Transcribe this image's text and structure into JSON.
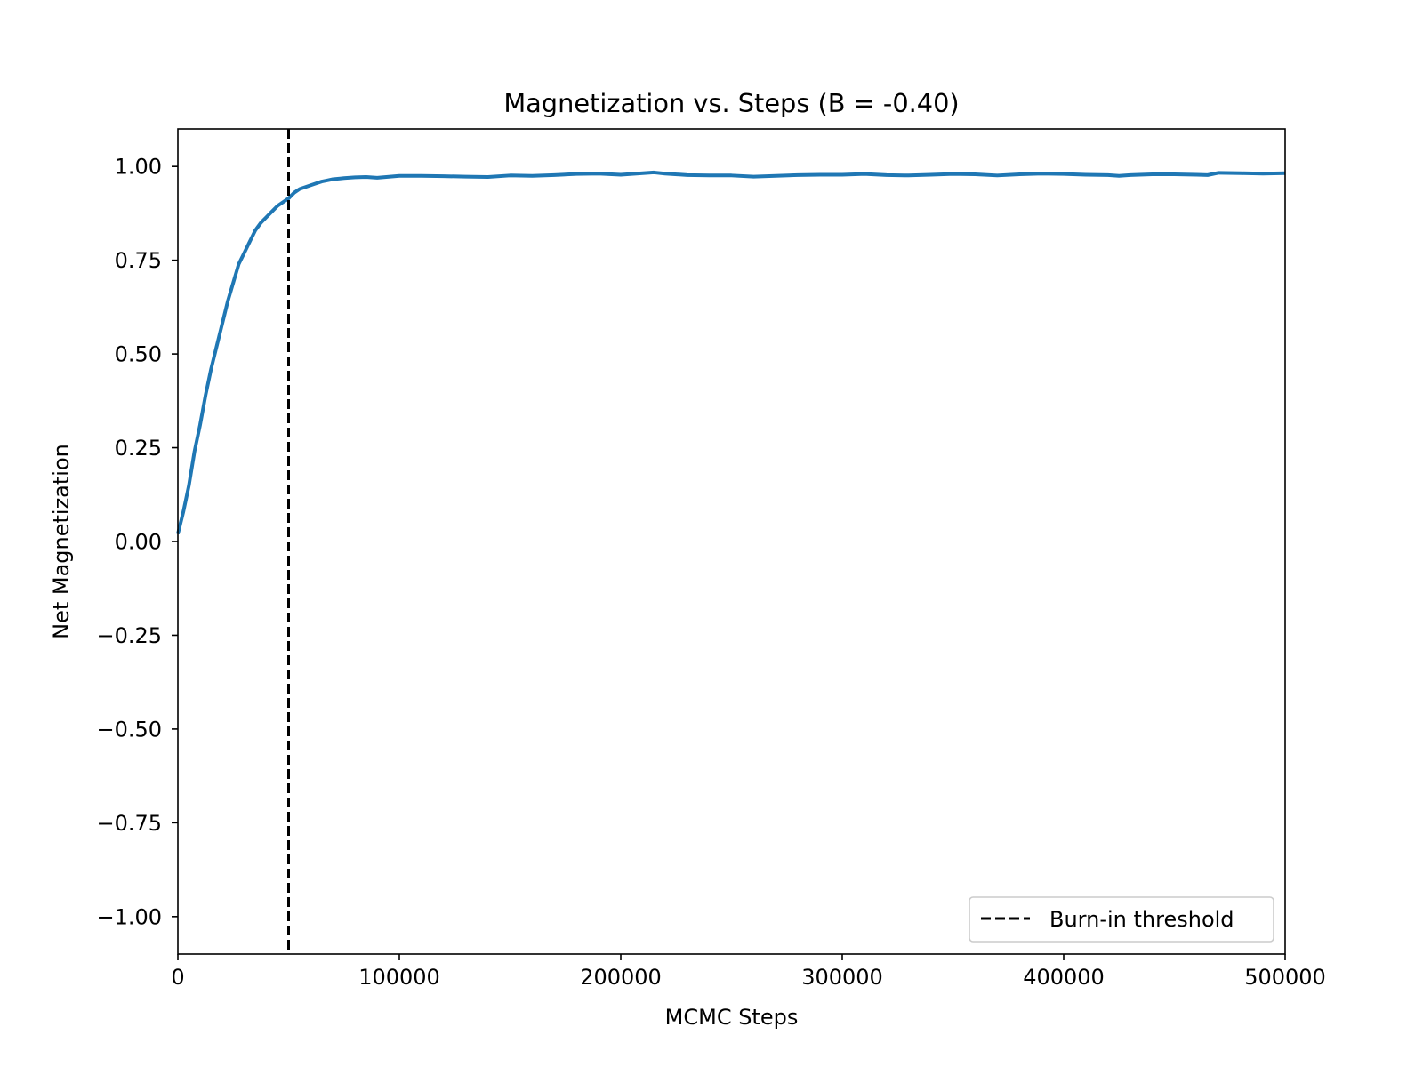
{
  "chart_data": {
    "type": "line",
    "title": "Magnetization vs. Steps (B = -0.40)",
    "xlabel": "MCMC Steps",
    "ylabel": "Net Magnetization",
    "xlim": [
      0,
      500000
    ],
    "ylim": [
      -1.1,
      1.1
    ],
    "xticks": [
      0,
      100000,
      200000,
      300000,
      400000,
      500000
    ],
    "xtick_labels": [
      "0",
      "100000",
      "200000",
      "300000",
      "400000",
      "500000"
    ],
    "yticks": [
      -1.0,
      -0.75,
      -0.5,
      -0.25,
      0.0,
      0.25,
      0.5,
      0.75,
      1.0
    ],
    "ytick_labels": [
      "−1.00",
      "−0.75",
      "−0.50",
      "−0.25",
      "0.00",
      "0.25",
      "0.50",
      "0.75",
      "1.00"
    ],
    "grid": false,
    "legend_position": "lower-right",
    "series": [
      {
        "color": "#1f77b4",
        "x": [
          0,
          2500,
          5000,
          7500,
          10000,
          12500,
          15000,
          17500,
          20000,
          22500,
          25000,
          27500,
          30000,
          32500,
          35000,
          37500,
          40000,
          42500,
          45000,
          47500,
          50000,
          52500,
          55000,
          57500,
          60000,
          62500,
          65000,
          67500,
          70000,
          75000,
          80000,
          85000,
          90000,
          100000,
          110000,
          120000,
          130000,
          140000,
          150000,
          160000,
          170000,
          180000,
          190000,
          200000,
          210000,
          215000,
          220000,
          230000,
          240000,
          250000,
          260000,
          270000,
          280000,
          290000,
          300000,
          310000,
          320000,
          330000,
          340000,
          350000,
          360000,
          370000,
          380000,
          390000,
          400000,
          410000,
          420000,
          425000,
          430000,
          440000,
          450000,
          460000,
          465000,
          470000,
          480000,
          490000,
          500000
        ],
        "y": [
          0.02,
          0.08,
          0.15,
          0.24,
          0.31,
          0.39,
          0.46,
          0.52,
          0.58,
          0.64,
          0.69,
          0.74,
          0.77,
          0.8,
          0.83,
          0.85,
          0.865,
          0.88,
          0.895,
          0.905,
          0.915,
          0.93,
          0.94,
          0.945,
          0.95,
          0.955,
          0.96,
          0.963,
          0.966,
          0.969,
          0.971,
          0.972,
          0.97,
          0.975,
          0.975,
          0.974,
          0.973,
          0.972,
          0.976,
          0.975,
          0.977,
          0.98,
          0.981,
          0.978,
          0.982,
          0.984,
          0.981,
          0.977,
          0.976,
          0.976,
          0.973,
          0.975,
          0.977,
          0.978,
          0.978,
          0.98,
          0.977,
          0.976,
          0.978,
          0.98,
          0.979,
          0.976,
          0.979,
          0.981,
          0.98,
          0.978,
          0.977,
          0.975,
          0.977,
          0.979,
          0.979,
          0.978,
          0.977,
          0.983,
          0.982,
          0.981,
          0.982
        ]
      }
    ],
    "vlines": [
      {
        "name": "Burn-in threshold",
        "x": 50000,
        "color": "#000000",
        "style": "dashed"
      }
    ]
  }
}
